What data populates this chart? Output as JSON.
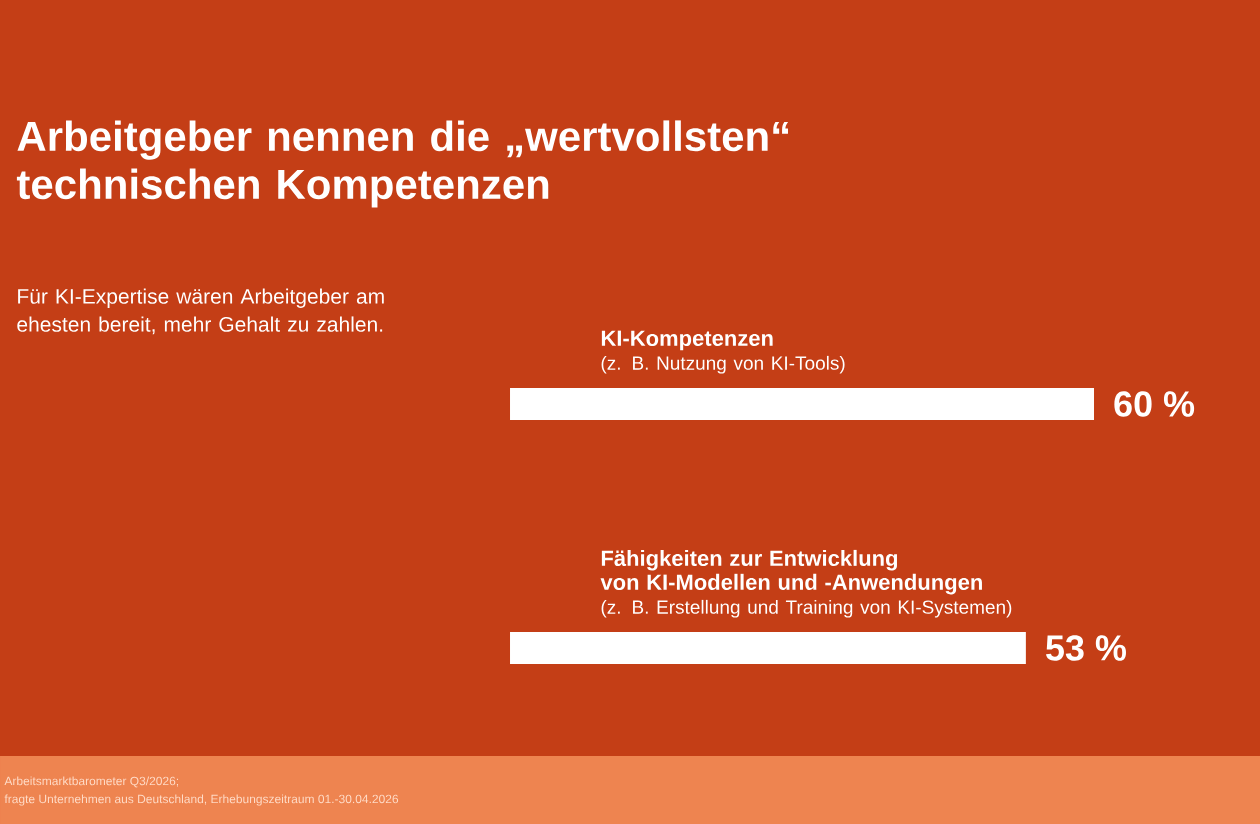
{
  "chart_data": {
    "type": "bar",
    "orientation": "horizontal",
    "title": "Arbeitgeber nennen die „wertvollsten“ technischen Kompetenzen",
    "subtitle": "Für KI-Expertise wären Arbeitgeber am ehesten bereit, mehr Gehalt zu zahlen.",
    "categories": [
      "KI-Kompetenzen",
      "Fähigkeiten zur Entwicklung von KI-Modellen und -Anwendungen"
    ],
    "values": [
      60,
      53
    ],
    "value_labels": [
      "60 %",
      "53 %"
    ],
    "color": "#ffffff",
    "annotations": [
      "(z. B. Nutzung von KI-Tools)",
      "(z. B. Erstellung und Training von KI-Systemen)",
      "Arbeitsmarktbarometer Q3/2026;",
      "fragte Unternehmen aus Deutschland, Erhebungszeitraum 01.-30.04.2026"
    ]
  }
}
